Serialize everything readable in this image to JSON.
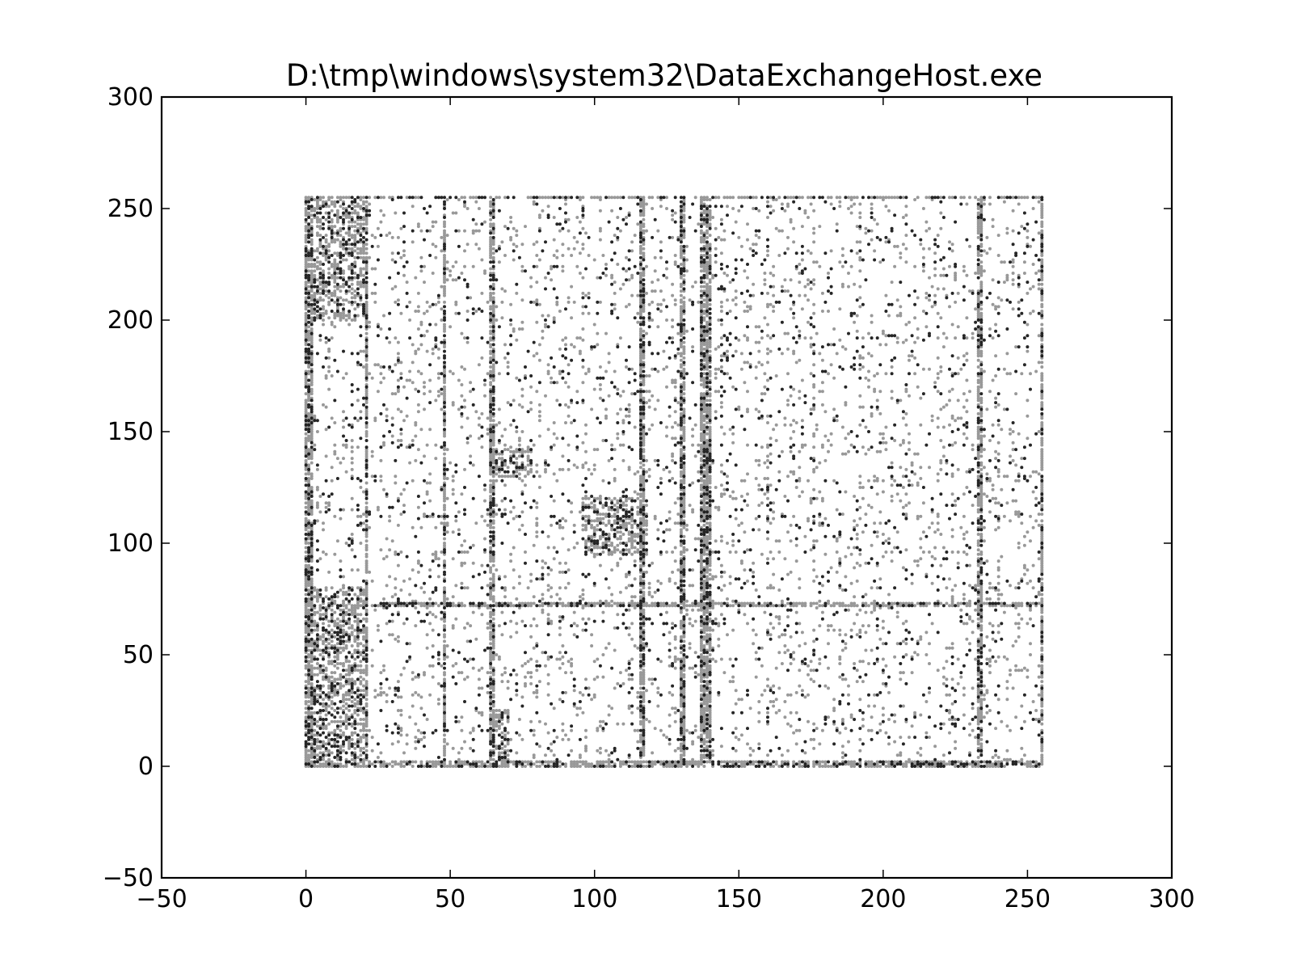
{
  "chart_data": {
    "type": "scatter",
    "title": "D:\\tmp\\windows\\system32\\DataExchangeHost.exe",
    "xlabel": "",
    "ylabel": "",
    "xlim": [
      -50,
      300
    ],
    "ylim": [
      -50,
      300
    ],
    "xticks": [
      -50,
      0,
      50,
      100,
      150,
      200,
      250,
      300
    ],
    "yticks": [
      -50,
      0,
      50,
      100,
      150,
      200,
      250,
      300
    ],
    "xtick_labels": [
      "−50",
      "0",
      "50",
      "100",
      "150",
      "200",
      "250",
      "300"
    ],
    "ytick_labels": [
      "−50",
      "0",
      "50",
      "100",
      "150",
      "200",
      "250",
      "300"
    ],
    "grid": false,
    "marker_color": "#000000",
    "point_domain": [
      0,
      255
    ],
    "dense_columns": [
      0,
      1,
      2,
      21,
      48,
      64,
      65,
      116,
      117,
      130,
      131,
      137,
      138,
      139,
      140,
      233,
      234,
      255
    ],
    "dense_rows": [
      0,
      1,
      2,
      72,
      73,
      255
    ],
    "clusters": [
      {
        "x": [
          97,
          118
        ],
        "y": [
          95,
          120
        ]
      },
      {
        "x": [
          64,
          78
        ],
        "y": [
          130,
          142
        ]
      },
      {
        "x": [
          64,
          70
        ],
        "y": [
          0,
          25
        ]
      },
      {
        "x": [
          0,
          20
        ],
        "y": [
          0,
          80
        ]
      },
      {
        "x": [
          0,
          20
        ],
        "y": [
          200,
          255
        ]
      }
    ]
  }
}
